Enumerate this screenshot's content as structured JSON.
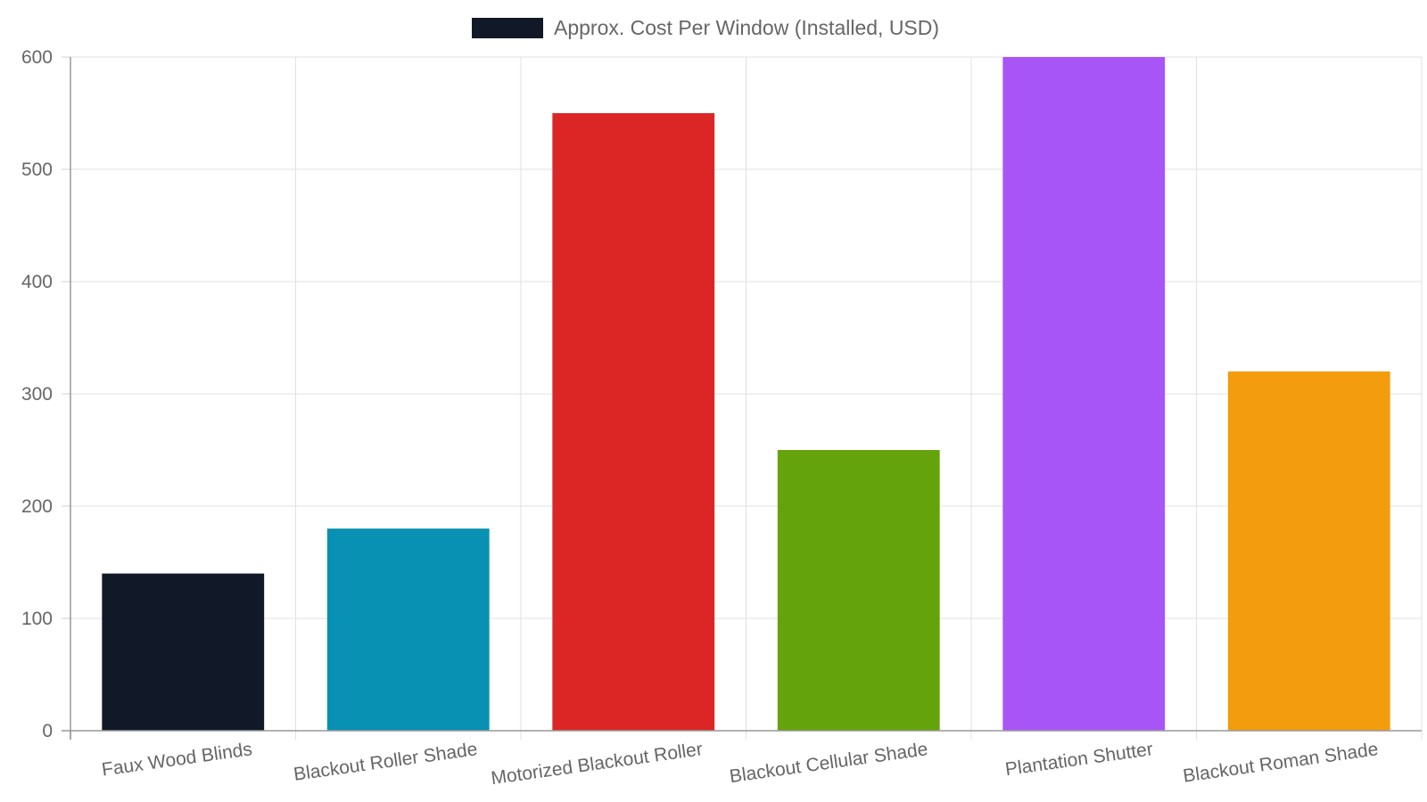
{
  "chart_data": {
    "type": "bar",
    "categories": [
      "Faux Wood Blinds",
      "Blackout Roller Shade",
      "Motorized Blackout Roller",
      "Blackout Cellular Shade",
      "Plantation Shutter",
      "Blackout Roman Shade"
    ],
    "series": [
      {
        "name": "Approx. Cost Per Window (Installed, USD)",
        "values": [
          140,
          180,
          550,
          250,
          600,
          320
        ]
      }
    ],
    "colors": [
      "#111827",
      "#0891b2",
      "#dc2626",
      "#65a30d",
      "#a855f7",
      "#f39c0d"
    ],
    "legend_color": "#111827",
    "ylim": [
      0,
      600
    ],
    "yticks": [
      0,
      100,
      200,
      300,
      400,
      500,
      600
    ],
    "grid": true,
    "legend_position": "top-center",
    "title": "",
    "xlabel": "",
    "ylabel": ""
  }
}
